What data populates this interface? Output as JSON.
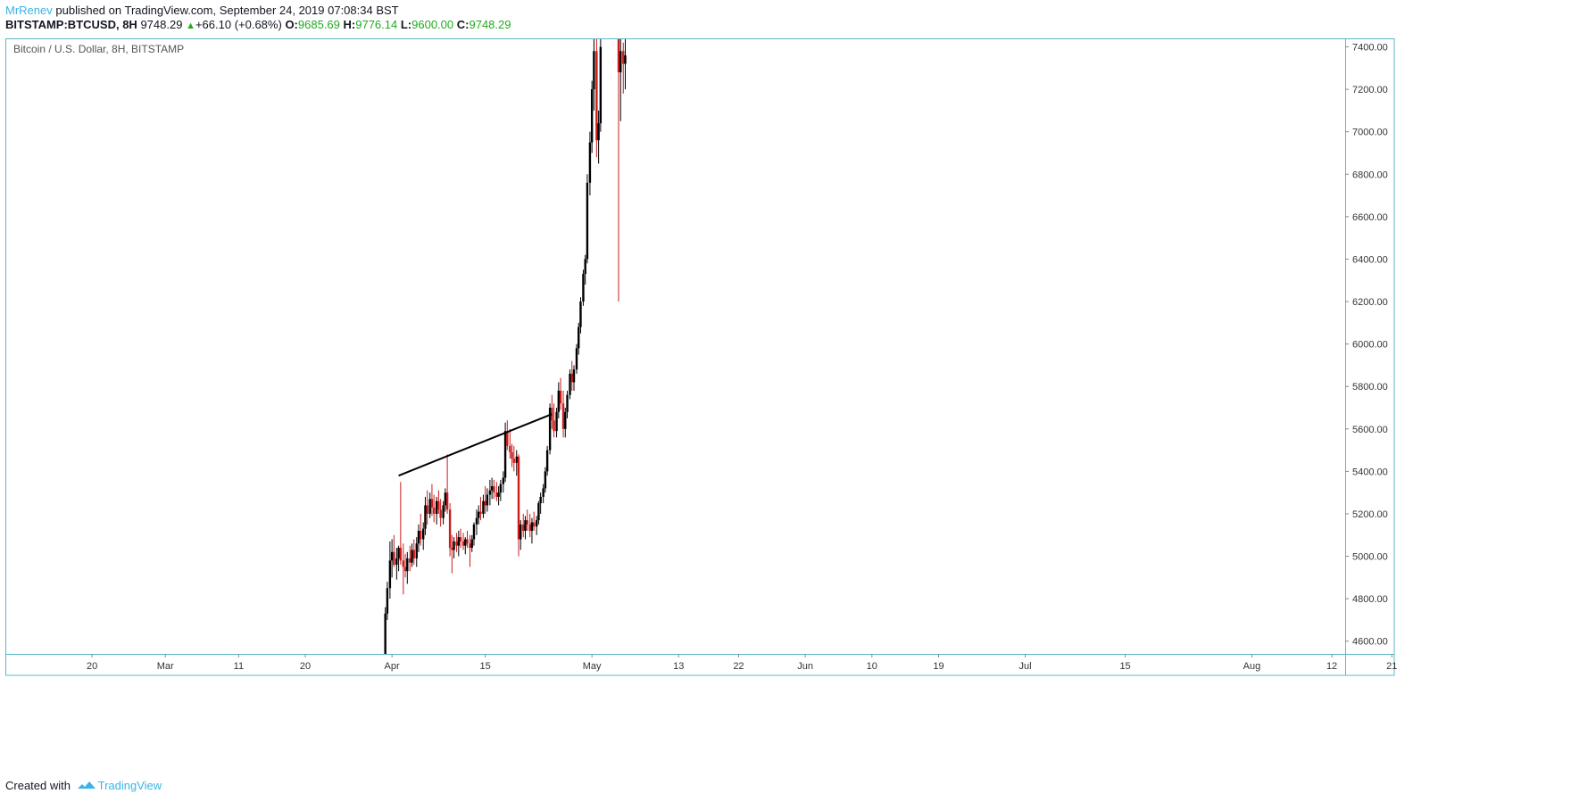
{
  "header": {
    "author": "MrRenev",
    "published_text": "published on TradingView.com, September 24, 2019 07:08:34 BST",
    "symbol": "BITSTAMP:BTCUSD, 8H",
    "price": "9748.29",
    "change": "+66.10 (+0.68%)",
    "o_label": "O:",
    "o_value": "9685.69",
    "h_label": "H:",
    "h_value": "9776.14",
    "l_label": "L:",
    "l_value": "9600.00",
    "c_label": "C:",
    "c_value": "9748.29"
  },
  "footer": {
    "created_with": "Created with",
    "brand": "TradingView"
  },
  "colors": {
    "up": "#000000",
    "down": "#cc1b1b",
    "frame": "#5bb8c5",
    "brand": "#3bb3e4",
    "positive": "#22ab22"
  },
  "chart_data": {
    "type": "candlestick",
    "title": "Bitcoin / U.S. Dollar, 8H, BITSTAMP",
    "ylim": [
      4540,
      7440
    ],
    "y_ticks": [
      4600,
      4800,
      5000,
      5200,
      5400,
      5600,
      5800,
      6000,
      6200,
      6400,
      6600,
      6800,
      7000,
      7200,
      7400
    ],
    "y_tick_labels": [
      "4600.00",
      "4800.00",
      "5000.00",
      "5200.00",
      "5400.00",
      "5600.00",
      "5800.00",
      "6000.00",
      "6200.00",
      "6400.00",
      "6600.00",
      "6800.00",
      "7000.00",
      "7200.00",
      "7400.00"
    ],
    "x_range_days": [
      -56,
      145
    ],
    "x_ticks": [
      {
        "label": "20",
        "day": -43
      },
      {
        "label": "Mar",
        "day": -32
      },
      {
        "label": "11",
        "day": -21
      },
      {
        "label": "20",
        "day": -11
      },
      {
        "label": "Apr",
        "day": 2
      },
      {
        "label": "15",
        "day": 16
      },
      {
        "label": "May",
        "day": 32
      },
      {
        "label": "13",
        "day": 45
      },
      {
        "label": "22",
        "day": 54
      },
      {
        "label": "Jun",
        "day": 64
      },
      {
        "label": "10",
        "day": 74
      },
      {
        "label": "19",
        "day": 84
      },
      {
        "label": "Jul",
        "day": 97
      },
      {
        "label": "15",
        "day": 112
      },
      {
        "label": "Aug",
        "day": 131
      },
      {
        "label": "12",
        "day": 143
      },
      {
        "label": "21",
        "day": 152
      }
    ],
    "trendline": {
      "from": {
        "day": 3.0,
        "price": 5380
      },
      "to": {
        "day": 26.0,
        "price": 5670
      }
    },
    "candles": [
      [
        1.0,
        4540,
        4760,
        4540,
        4730
      ],
      [
        1.3,
        4730,
        4880,
        4700,
        4850
      ],
      [
        1.7,
        4850,
        5070,
        4800,
        4980
      ],
      [
        2.0,
        4980,
        5080,
        4900,
        5020
      ],
      [
        2.3,
        5020,
        5100,
        4950,
        4960
      ],
      [
        2.7,
        4960,
        5040,
        4890,
        4990
      ],
      [
        3.0,
        4990,
        5050,
        4930,
        5040
      ],
      [
        3.3,
        5040,
        5350,
        4960,
        4980
      ],
      [
        3.7,
        4980,
        5060,
        4820,
        4950
      ],
      [
        4.0,
        4950,
        5010,
        4900,
        4930
      ],
      [
        4.3,
        4930,
        5020,
        4870,
        4990
      ],
      [
        4.7,
        4990,
        5050,
        4930,
        4970
      ],
      [
        5.0,
        4970,
        5060,
        4950,
        5030
      ],
      [
        5.3,
        5030,
        5080,
        4960,
        4990
      ],
      [
        5.7,
        4990,
        5090,
        4950,
        5060
      ],
      [
        6.0,
        5060,
        5150,
        5020,
        5120
      ],
      [
        6.3,
        5120,
        5200,
        5050,
        5080
      ],
      [
        6.7,
        5080,
        5160,
        5030,
        5130
      ],
      [
        7.0,
        5130,
        5280,
        5100,
        5240
      ],
      [
        7.3,
        5240,
        5310,
        5150,
        5200
      ],
      [
        7.7,
        5200,
        5300,
        5180,
        5270
      ],
      [
        8.0,
        5270,
        5340,
        5190,
        5230
      ],
      [
        8.3,
        5230,
        5290,
        5160,
        5200
      ],
      [
        8.7,
        5200,
        5280,
        5150,
        5260
      ],
      [
        9.0,
        5260,
        5310,
        5200,
        5220
      ],
      [
        9.3,
        5220,
        5270,
        5140,
        5180
      ],
      [
        9.7,
        5180,
        5260,
        5150,
        5240
      ],
      [
        10.0,
        5240,
        5320,
        5210,
        5300
      ],
      [
        10.3,
        5300,
        5480,
        5200,
        5220
      ],
      [
        10.7,
        5220,
        5250,
        5000,
        5040
      ],
      [
        11.0,
        5040,
        5100,
        4920,
        5030
      ],
      [
        11.3,
        5030,
        5090,
        4990,
        5070
      ],
      [
        11.7,
        5070,
        5110,
        5020,
        5050
      ],
      [
        12.0,
        5050,
        5120,
        5000,
        5090
      ],
      [
        12.3,
        5090,
        5130,
        5040,
        5070
      ],
      [
        12.7,
        5070,
        5110,
        5030,
        5050
      ],
      [
        13.0,
        5050,
        5090,
        5010,
        5080
      ],
      [
        13.3,
        5080,
        5120,
        5040,
        5060
      ],
      [
        13.7,
        5060,
        5100,
        4950,
        5040
      ],
      [
        14.0,
        5040,
        5100,
        5020,
        5080
      ],
      [
        14.3,
        5080,
        5160,
        5050,
        5150
      ],
      [
        14.7,
        5150,
        5220,
        5100,
        5180
      ],
      [
        15.0,
        5180,
        5240,
        5150,
        5210
      ],
      [
        15.3,
        5210,
        5280,
        5170,
        5200
      ],
      [
        15.7,
        5200,
        5290,
        5180,
        5260
      ],
      [
        16.0,
        5260,
        5330,
        5200,
        5240
      ],
      [
        16.3,
        5240,
        5320,
        5210,
        5290
      ],
      [
        16.7,
        5290,
        5360,
        5240,
        5310
      ],
      [
        17.0,
        5310,
        5370,
        5270,
        5330
      ],
      [
        17.3,
        5330,
        5360,
        5270,
        5300
      ],
      [
        17.7,
        5300,
        5350,
        5260,
        5280
      ],
      [
        18.0,
        5280,
        5330,
        5240,
        5300
      ],
      [
        18.3,
        5300,
        5360,
        5260,
        5340
      ],
      [
        18.7,
        5340,
        5400,
        5300,
        5370
      ],
      [
        19.0,
        5370,
        5630,
        5350,
        5590
      ],
      [
        19.3,
        5590,
        5640,
        5500,
        5520
      ],
      [
        19.7,
        5520,
        5600,
        5460,
        5490
      ],
      [
        20.0,
        5490,
        5530,
        5420,
        5460
      ],
      [
        20.3,
        5460,
        5520,
        5400,
        5440
      ],
      [
        20.7,
        5440,
        5500,
        5380,
        5470
      ],
      [
        21.0,
        5470,
        5480,
        5000,
        5080
      ],
      [
        21.3,
        5080,
        5170,
        5030,
        5150
      ],
      [
        21.7,
        5150,
        5200,
        5090,
        5120
      ],
      [
        22.0,
        5120,
        5190,
        5080,
        5170
      ],
      [
        22.3,
        5170,
        5220,
        5120,
        5150
      ],
      [
        22.7,
        5150,
        5200,
        5090,
        5120
      ],
      [
        23.0,
        5120,
        5180,
        5060,
        5160
      ],
      [
        23.3,
        5160,
        5210,
        5120,
        5140
      ],
      [
        23.7,
        5140,
        5190,
        5100,
        5170
      ],
      [
        24.0,
        5170,
        5260,
        5150,
        5250
      ],
      [
        24.3,
        5250,
        5300,
        5200,
        5280
      ],
      [
        24.7,
        5280,
        5340,
        5250,
        5320
      ],
      [
        25.0,
        5320,
        5420,
        5300,
        5400
      ],
      [
        25.3,
        5400,
        5520,
        5380,
        5500
      ],
      [
        25.7,
        5500,
        5720,
        5480,
        5700
      ],
      [
        26.0,
        5700,
        5760,
        5600,
        5640
      ],
      [
        26.3,
        5640,
        5720,
        5560,
        5590
      ],
      [
        26.7,
        5590,
        5700,
        5560,
        5680
      ],
      [
        27.0,
        5680,
        5820,
        5650,
        5780
      ],
      [
        27.3,
        5780,
        5840,
        5690,
        5720
      ],
      [
        27.7,
        5720,
        5780,
        5560,
        5600
      ],
      [
        28.0,
        5600,
        5700,
        5560,
        5680
      ],
      [
        28.3,
        5680,
        5780,
        5650,
        5760
      ],
      [
        28.7,
        5760,
        5880,
        5740,
        5860
      ],
      [
        29.0,
        5860,
        5920,
        5780,
        5820
      ],
      [
        29.3,
        5820,
        5900,
        5780,
        5880
      ],
      [
        29.7,
        5880,
        6000,
        5860,
        5980
      ],
      [
        30.0,
        5980,
        6100,
        5950,
        6080
      ],
      [
        30.3,
        6080,
        6220,
        6050,
        6200
      ],
      [
        30.7,
        6200,
        6350,
        6180,
        6330
      ],
      [
        31.0,
        6330,
        6420,
        6280,
        6400
      ],
      [
        31.3,
        6400,
        6800,
        6380,
        6760
      ],
      [
        31.7,
        6760,
        7000,
        6700,
        6950
      ],
      [
        32.0,
        6950,
        7240,
        6900,
        7200
      ],
      [
        32.3,
        7200,
        7440,
        7100,
        7380
      ],
      [
        32.7,
        7380,
        7440,
        6880,
        6960
      ],
      [
        33.0,
        6960,
        7100,
        6850,
        7040
      ],
      [
        33.3,
        7040,
        7440,
        7000,
        7400
      ],
      [
        36.0,
        7440,
        7440,
        6200,
        7280
      ],
      [
        36.3,
        7280,
        7440,
        7050,
        7380
      ],
      [
        36.7,
        7380,
        7420,
        7180,
        7320
      ],
      [
        37.0,
        7320,
        7440,
        7200,
        7360
      ]
    ]
  }
}
